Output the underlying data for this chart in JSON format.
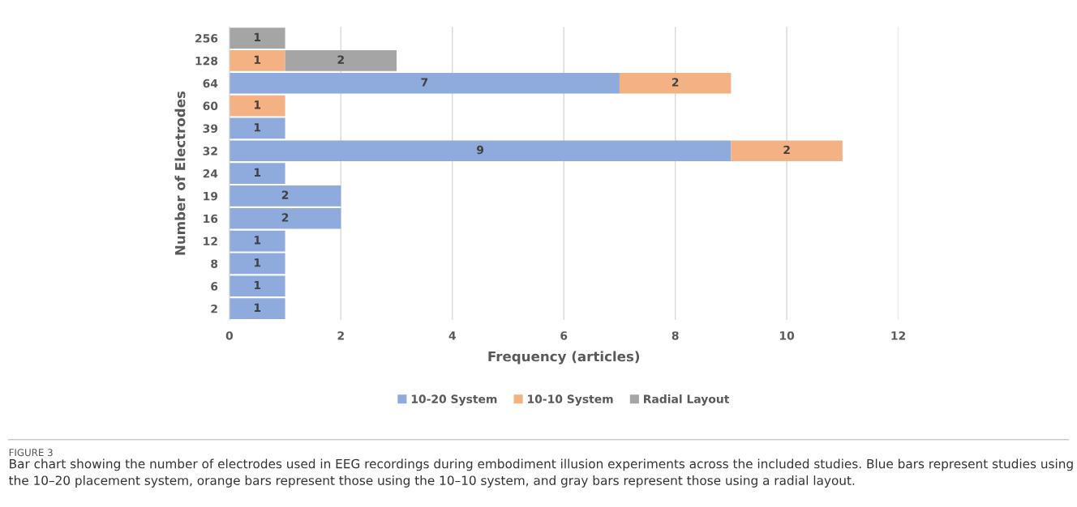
{
  "chart_data": {
    "type": "bar",
    "orientation": "horizontal",
    "stacked": true,
    "categories": [
      "256",
      "128",
      "64",
      "60",
      "39",
      "32",
      "24",
      "19",
      "16",
      "12",
      "8",
      "6",
      "2"
    ],
    "series": [
      {
        "name": "10-20 System",
        "color": "#8faadc",
        "values": [
          null,
          null,
          7,
          null,
          1,
          9,
          1,
          2,
          2,
          1,
          1,
          1,
          1
        ]
      },
      {
        "name": "10-10 System",
        "color": "#f4b183",
        "values": [
          null,
          1,
          2,
          1,
          null,
          2,
          null,
          null,
          null,
          null,
          null,
          null,
          null
        ]
      },
      {
        "name": "Radial Layout",
        "color": "#a5a5a5",
        "values": [
          1,
          2,
          null,
          null,
          null,
          null,
          null,
          null,
          null,
          null,
          null,
          null,
          null
        ]
      }
    ],
    "xlabel": "Frequency (articles)",
    "ylabel": "Number of Electrodes",
    "xlim": [
      0,
      12
    ],
    "xticks": [
      0,
      2,
      4,
      6,
      8,
      10,
      12
    ],
    "grid": "x",
    "legend": "bottom",
    "data_labels": true,
    "annotations": [
      "FIGURE 3",
      "Bar chart showing the number of electrodes used in EEG recordings during embodiment illusion experiments across the included studies. Blue bars represent studies using the 10–20 placement system, orange bars represent those using the 10–10 system, and gray bars represent those using a radial layout."
    ]
  }
}
